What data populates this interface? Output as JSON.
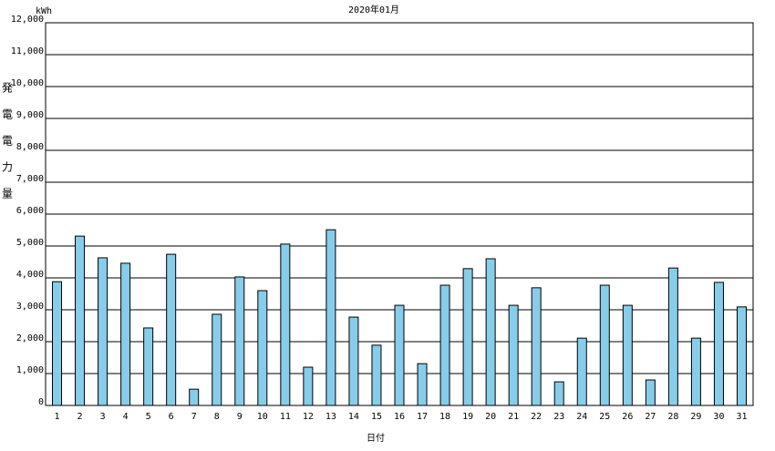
{
  "chart_data": {
    "type": "bar",
    "title": "2020年01月",
    "unit": "kWh",
    "y_label": "発電電力量",
    "x_label": "日付",
    "categories": [
      "1",
      "2",
      "3",
      "4",
      "5",
      "6",
      "7",
      "8",
      "9",
      "10",
      "11",
      "12",
      "13",
      "14",
      "15",
      "16",
      "17",
      "18",
      "19",
      "20",
      "21",
      "22",
      "23",
      "24",
      "25",
      "26",
      "27",
      "28",
      "29",
      "30",
      "31"
    ],
    "values": [
      3880,
      5310,
      4630,
      4460,
      2430,
      4740,
      510,
      2860,
      4030,
      3600,
      5060,
      1200,
      5510,
      2770,
      1890,
      3140,
      1310,
      3770,
      4290,
      4600,
      3140,
      3690,
      740,
      2110,
      3770,
      3140,
      800,
      4310,
      2110,
      3860,
      3090
    ],
    "color": "#87cdea",
    "ylim": [
      0,
      12000
    ],
    "yticks": [
      0,
      {
        "value": 1000,
        "label": "1,000"
      },
      {
        "value": 2000,
        "label": "2,000"
      },
      {
        "value": 3000,
        "label": "3,000"
      },
      {
        "value": 4000,
        "label": "4,000"
      },
      {
        "value": 5000,
        "label": "5,000"
      },
      {
        "value": 6000,
        "label": "6,000"
      },
      {
        "value": 7000,
        "label": "7,000"
      },
      {
        "value": 8000,
        "label": "8,000"
      },
      {
        "value": 9000,
        "label": "9,000"
      },
      {
        "value": 10000,
        "label": "10,000"
      },
      {
        "value": 11000,
        "label": "11,000"
      },
      {
        "value": 12000,
        "label": "12,000"
      }
    ],
    "grid": true
  }
}
